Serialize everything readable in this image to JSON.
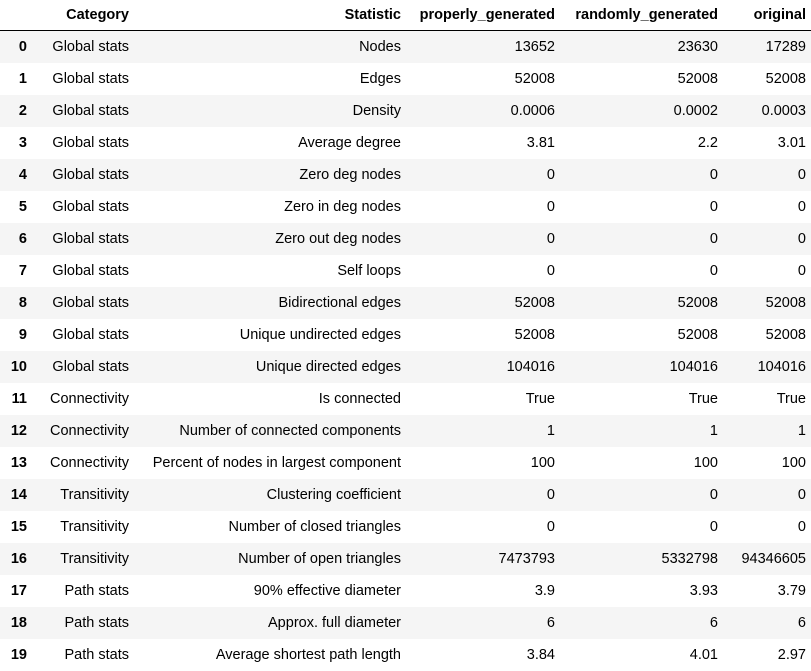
{
  "table": {
    "index_header": "",
    "columns": [
      "Category",
      "Statistic",
      "properly_generated",
      "randomly_generated",
      "original"
    ],
    "rows": [
      {
        "index": "0",
        "category": "Global stats",
        "statistic": "Nodes",
        "properly_generated": "13652",
        "randomly_generated": "23630",
        "original": "17289"
      },
      {
        "index": "1",
        "category": "Global stats",
        "statistic": "Edges",
        "properly_generated": "52008",
        "randomly_generated": "52008",
        "original": "52008"
      },
      {
        "index": "2",
        "category": "Global stats",
        "statistic": "Density",
        "properly_generated": "0.0006",
        "randomly_generated": "0.0002",
        "original": "0.0003"
      },
      {
        "index": "3",
        "category": "Global stats",
        "statistic": "Average degree",
        "properly_generated": "3.81",
        "randomly_generated": "2.2",
        "original": "3.01"
      },
      {
        "index": "4",
        "category": "Global stats",
        "statistic": "Zero deg nodes",
        "properly_generated": "0",
        "randomly_generated": "0",
        "original": "0"
      },
      {
        "index": "5",
        "category": "Global stats",
        "statistic": "Zero in deg nodes",
        "properly_generated": "0",
        "randomly_generated": "0",
        "original": "0"
      },
      {
        "index": "6",
        "category": "Global stats",
        "statistic": "Zero out deg nodes",
        "properly_generated": "0",
        "randomly_generated": "0",
        "original": "0"
      },
      {
        "index": "7",
        "category": "Global stats",
        "statistic": "Self loops",
        "properly_generated": "0",
        "randomly_generated": "0",
        "original": "0"
      },
      {
        "index": "8",
        "category": "Global stats",
        "statistic": "Bidirectional edges",
        "properly_generated": "52008",
        "randomly_generated": "52008",
        "original": "52008"
      },
      {
        "index": "9",
        "category": "Global stats",
        "statistic": "Unique undirected edges",
        "properly_generated": "52008",
        "randomly_generated": "52008",
        "original": "52008"
      },
      {
        "index": "10",
        "category": "Global stats",
        "statistic": "Unique directed edges",
        "properly_generated": "104016",
        "randomly_generated": "104016",
        "original": "104016"
      },
      {
        "index": "11",
        "category": "Connectivity",
        "statistic": "Is connected",
        "properly_generated": "True",
        "randomly_generated": "True",
        "original": "True"
      },
      {
        "index": "12",
        "category": "Connectivity",
        "statistic": "Number of connected components",
        "properly_generated": "1",
        "randomly_generated": "1",
        "original": "1"
      },
      {
        "index": "13",
        "category": "Connectivity",
        "statistic": "Percent of nodes in largest component",
        "properly_generated": "100",
        "randomly_generated": "100",
        "original": "100"
      },
      {
        "index": "14",
        "category": "Transitivity",
        "statistic": "Clustering coefficient",
        "properly_generated": "0",
        "randomly_generated": "0",
        "original": "0"
      },
      {
        "index": "15",
        "category": "Transitivity",
        "statistic": "Number of closed triangles",
        "properly_generated": "0",
        "randomly_generated": "0",
        "original": "0"
      },
      {
        "index": "16",
        "category": "Transitivity",
        "statistic": "Number of open triangles",
        "properly_generated": "7473793",
        "randomly_generated": "5332798",
        "original": "94346605"
      },
      {
        "index": "17",
        "category": "Path stats",
        "statistic": "90% effective diameter",
        "properly_generated": "3.9",
        "randomly_generated": "3.93",
        "original": "3.79"
      },
      {
        "index": "18",
        "category": "Path stats",
        "statistic": "Approx. full diameter",
        "properly_generated": "6",
        "randomly_generated": "6",
        "original": "6"
      },
      {
        "index": "19",
        "category": "Path stats",
        "statistic": "Average shortest path length",
        "properly_generated": "3.84",
        "randomly_generated": "4.01",
        "original": "2.97"
      }
    ]
  }
}
